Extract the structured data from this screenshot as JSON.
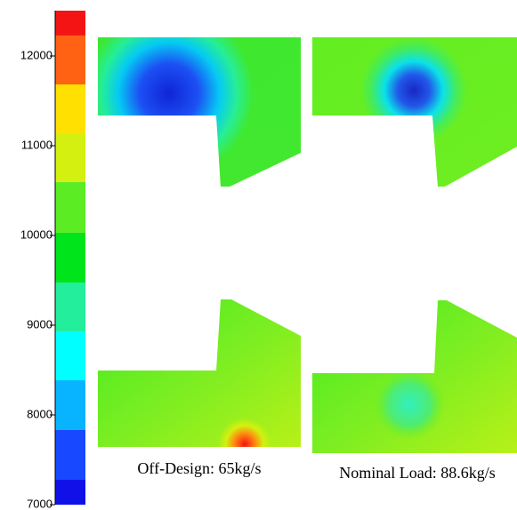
{
  "chart_data": {
    "type": "contour",
    "colorbar": {
      "ylim": [
        7000,
        12505
      ],
      "yticks": [
        7000,
        8000,
        9000,
        10000,
        11000,
        12000
      ],
      "levels": [
        7000,
        7277,
        7832,
        8386,
        8931,
        9475,
        10030,
        10594,
        11139,
        11683,
        12228,
        12505
      ],
      "colors": [
        "#1010e8",
        "#1848ff",
        "#08b4ff",
        "#00ffff",
        "#22ee9c",
        "#00e41c",
        "#5cec24",
        "#d4f010",
        "#ffe000",
        "#ff6212",
        "#f41414"
      ]
    },
    "panels": [
      {
        "caption": "Off-Design: 65kg/s"
      },
      {
        "caption": "Nominal Load: 88.6kg/s"
      }
    ]
  }
}
